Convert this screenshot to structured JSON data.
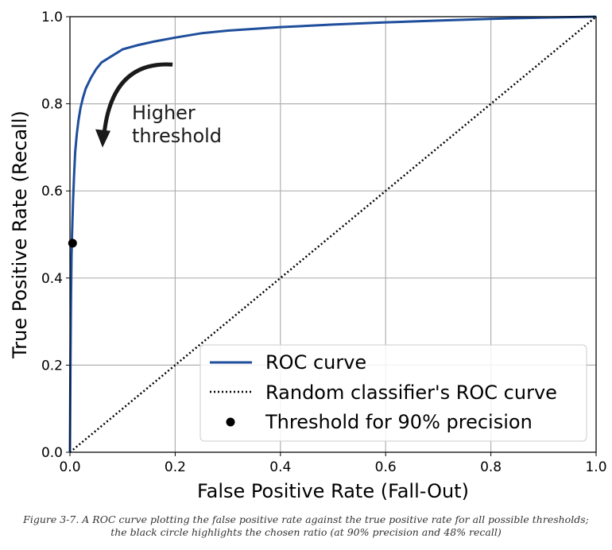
{
  "chart_data": {
    "type": "line",
    "xlabel": "False Positive Rate (Fall-Out)",
    "ylabel": "True Positive Rate (Recall)",
    "xlim": [
      0,
      1
    ],
    "ylim": [
      0,
      1
    ],
    "xticks": [
      "0.0",
      "0.2",
      "0.4",
      "0.6",
      "0.8",
      "1.0"
    ],
    "yticks": [
      "0.0",
      "0.2",
      "0.4",
      "0.6",
      "0.8",
      "1.0"
    ],
    "grid": true,
    "legend_position": "lower-right",
    "series": [
      {
        "name": "ROC curve",
        "style": "solid",
        "color": "#1f4e9c",
        "x": [
          0,
          0.001,
          0.002,
          0.003,
          0.004,
          0.006,
          0.008,
          0.01,
          0.013,
          0.016,
          0.02,
          0.025,
          0.03,
          0.04,
          0.05,
          0.06,
          0.08,
          0.1,
          0.13,
          0.16,
          0.2,
          0.25,
          0.3,
          0.4,
          0.5,
          0.6,
          0.7,
          0.8,
          0.9,
          1.0
        ],
        "y": [
          0,
          0.2,
          0.35,
          0.45,
          0.5,
          0.58,
          0.64,
          0.69,
          0.73,
          0.76,
          0.79,
          0.815,
          0.835,
          0.86,
          0.88,
          0.895,
          0.91,
          0.925,
          0.935,
          0.943,
          0.952,
          0.962,
          0.968,
          0.976,
          0.982,
          0.987,
          0.991,
          0.995,
          0.998,
          1.0
        ]
      },
      {
        "name": "Random classifier's ROC curve",
        "style": "dotted",
        "color": "#000000",
        "x": [
          0,
          1
        ],
        "y": [
          0,
          1
        ]
      },
      {
        "name": "Threshold for 90% precision",
        "style": "marker",
        "color": "#000000",
        "x": [
          0.005
        ],
        "y": [
          0.48
        ]
      }
    ],
    "annotation": {
      "text_lines": [
        "Higher",
        "threshold"
      ],
      "arrow_from": [
        0.195,
        0.89
      ],
      "arrow_to": [
        0.065,
        0.705
      ]
    }
  },
  "caption": {
    "line1": "Figure 3-7. A ROC curve plotting the false positive rate against the true positive rate for all possible thresholds;",
    "line2": "the black circle highlights the chosen ratio (at 90% precision and 48% recall)"
  }
}
